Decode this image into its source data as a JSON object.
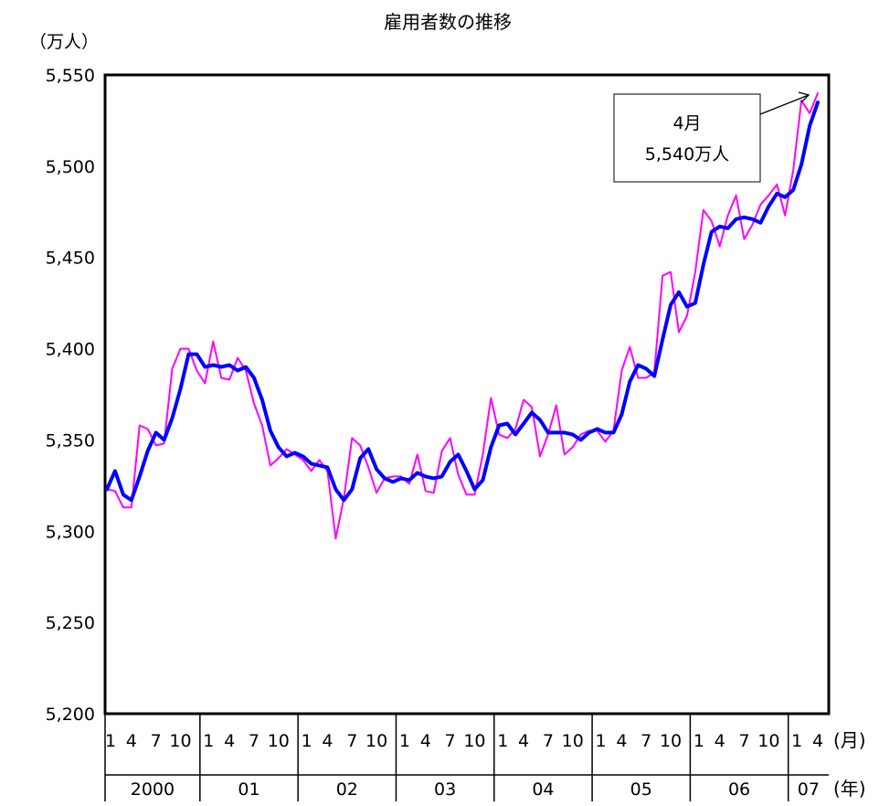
{
  "chart_data": {
    "type": "line",
    "title": "雇用者数の推移",
    "yunit": "（万人）",
    "xunit_month": "(月)",
    "xunit_year": "(年)",
    "ylim": [
      5200,
      5550
    ],
    "yticks": [
      "5,200",
      "5,250",
      "5,300",
      "5,350",
      "5,400",
      "5,450",
      "5,500",
      "5,550"
    ],
    "month_ticks": [
      "1",
      "4",
      "7",
      "10"
    ],
    "years": [
      "2000",
      "01",
      "02",
      "03",
      "04",
      "05",
      "06",
      "07"
    ],
    "annotation": {
      "line1": "4月",
      "line2": "5,540万人"
    },
    "colors": {
      "monthly": "#ff00ff",
      "trend": "#0000ff"
    },
    "series": [
      {
        "key": "monthly",
        "values": [
          5323,
          5322,
          5313,
          5313,
          5358,
          5356,
          5347,
          5348,
          5389,
          5400,
          5400,
          5388,
          5381,
          5404,
          5384,
          5383,
          5395,
          5388,
          5370,
          5358,
          5336,
          5340,
          5345,
          5342,
          5339,
          5333,
          5339,
          5333,
          5296,
          5318,
          5351,
          5347,
          5335,
          5321,
          5329,
          5330,
          5330,
          5326,
          5342,
          5322,
          5321,
          5344,
          5351,
          5331,
          5320,
          5320,
          5342,
          5373,
          5353,
          5351,
          5356,
          5372,
          5368,
          5341,
          5353,
          5369,
          5342,
          5346,
          5353,
          5355,
          5355,
          5349,
          5355,
          5388,
          5401,
          5384,
          5384,
          5387,
          5440,
          5442,
          5409,
          5418,
          5442,
          5476,
          5470,
          5456,
          5473,
          5484,
          5460,
          5468,
          5479,
          5484,
          5490,
          5473,
          5498,
          5536,
          5529,
          5540
        ]
      },
      {
        "key": "trend",
        "values": [
          5323,
          5333,
          5320,
          5317,
          5330,
          5344,
          5354,
          5350,
          5362,
          5378,
          5397,
          5397,
          5390,
          5391,
          5390,
          5391,
          5388,
          5390,
          5384,
          5372,
          5355,
          5346,
          5341,
          5343,
          5341,
          5337,
          5336,
          5335,
          5323,
          5317,
          5323,
          5340,
          5345,
          5334,
          5329,
          5327,
          5329,
          5328,
          5332,
          5330,
          5329,
          5330,
          5338,
          5342,
          5333,
          5323,
          5328,
          5346,
          5358,
          5359,
          5353,
          5359,
          5365,
          5361,
          5354,
          5354,
          5354,
          5353,
          5350,
          5354,
          5356,
          5354,
          5354,
          5364,
          5382,
          5391,
          5389,
          5385,
          5405,
          5424,
          5431,
          5423,
          5425,
          5446,
          5464,
          5467,
          5466,
          5471,
          5472,
          5471,
          5469,
          5478,
          5485,
          5483,
          5487,
          5501,
          5522,
          5535
        ]
      }
    ]
  }
}
